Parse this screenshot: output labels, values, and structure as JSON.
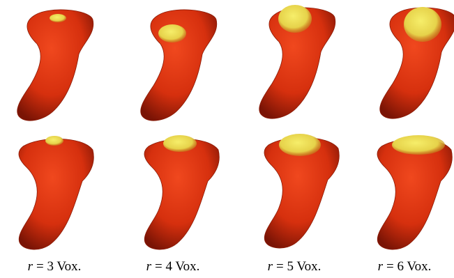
{
  "captions": [
    {
      "symbol": "r",
      "text": "= 3 Vox."
    },
    {
      "symbol": "r",
      "text": "= 4 Vox."
    },
    {
      "symbol": "r",
      "text": "= 5 Vox."
    },
    {
      "symbol": "r",
      "text": "= 6 Vox."
    }
  ]
}
